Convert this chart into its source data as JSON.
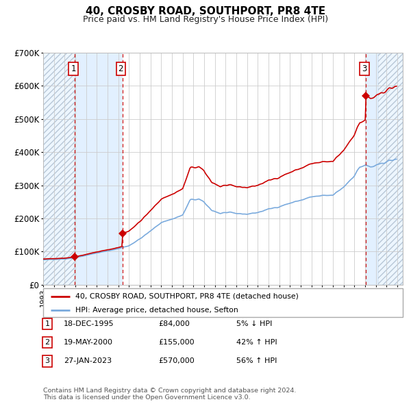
{
  "title": "40, CROSBY ROAD, SOUTHPORT, PR8 4TE",
  "subtitle": "Price paid vs. HM Land Registry's House Price Index (HPI)",
  "ylim": [
    0,
    700000
  ],
  "yticks": [
    0,
    100000,
    200000,
    300000,
    400000,
    500000,
    600000,
    700000
  ],
  "ytick_labels": [
    "£0",
    "£100K",
    "£200K",
    "£300K",
    "£400K",
    "£500K",
    "£600K",
    "£700K"
  ],
  "sale_prices": [
    84000,
    155000,
    570000
  ],
  "sale_labels": [
    "1",
    "2",
    "3"
  ],
  "sale_pct": [
    "5% ↓ HPI",
    "42% ↑ HPI",
    "56% ↑ HPI"
  ],
  "sale_date_str": [
    "18-DEC-1995",
    "19-MAY-2000",
    "27-JAN-2023"
  ],
  "sale_prices_disp": [
    "£84,000",
    "£155,000",
    "£570,000"
  ],
  "t1": 1995.96,
  "t2": 2000.38,
  "t3": 2023.08,
  "xlim_start": 1993.0,
  "xlim_end": 2026.5,
  "red_line_color": "#cc0000",
  "blue_line_color": "#7aaadd",
  "hatch_color": "#bbccdd",
  "light_blue_fill": "#ddeeff",
  "legend1": "40, CROSBY ROAD, SOUTHPORT, PR8 4TE (detached house)",
  "legend2": "HPI: Average price, detached house, Sefton",
  "footnote": "Contains HM Land Registry data © Crown copyright and database right 2024.\nThis data is licensed under the Open Government Licence v3.0.",
  "grid_color": "#cccccc",
  "title_fontsize": 11,
  "subtitle_fontsize": 9
}
